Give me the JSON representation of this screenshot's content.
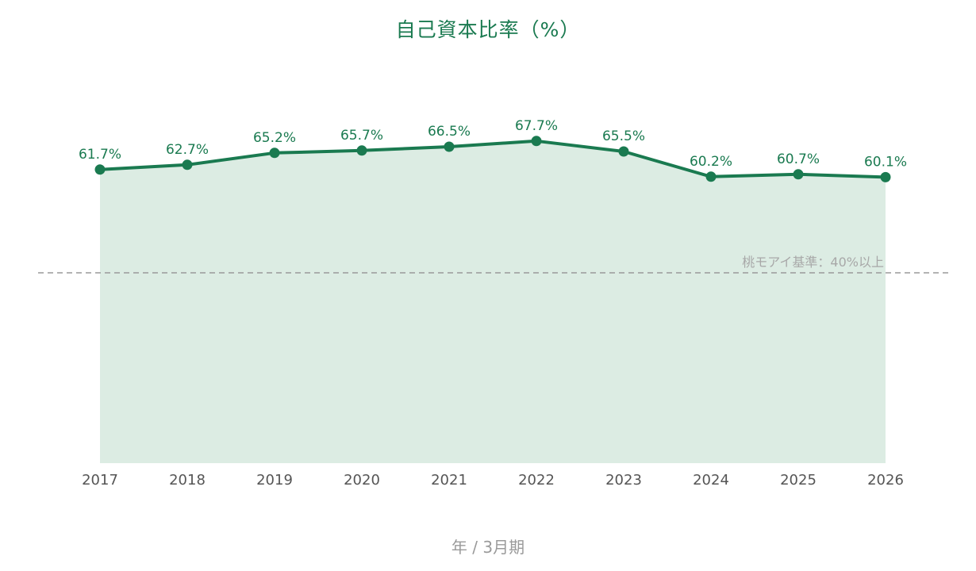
{
  "chart_data": {
    "type": "area",
    "title": "自己資本比率（%）",
    "xlabel": "年 / 3月期",
    "ylabel": "",
    "categories": [
      "2017",
      "2018",
      "2019",
      "2020",
      "2021",
      "2022",
      "2023",
      "2024",
      "2025",
      "2026"
    ],
    "series": [
      {
        "values": [
          61.7,
          62.7,
          65.2,
          65.7,
          66.5,
          67.7,
          65.5,
          60.2,
          60.7,
          60.1
        ],
        "data_labels": [
          "61.7%",
          "62.7%",
          "65.2%",
          "65.7%",
          "66.5%",
          "67.7%",
          "65.5%",
          "60.2%",
          "60.7%",
          "60.1%"
        ]
      }
    ],
    "ylim": [
      0,
      80
    ],
    "reference_line": {
      "value": 40,
      "label": "桃モアイ基準：40%以上",
      "style": "dashed"
    },
    "grid": false,
    "legend": "none",
    "colors": {
      "line": "#1a7a50",
      "fill": "#dcece3",
      "reference": "#9a9a9a",
      "title": "#1a7a50"
    }
  }
}
